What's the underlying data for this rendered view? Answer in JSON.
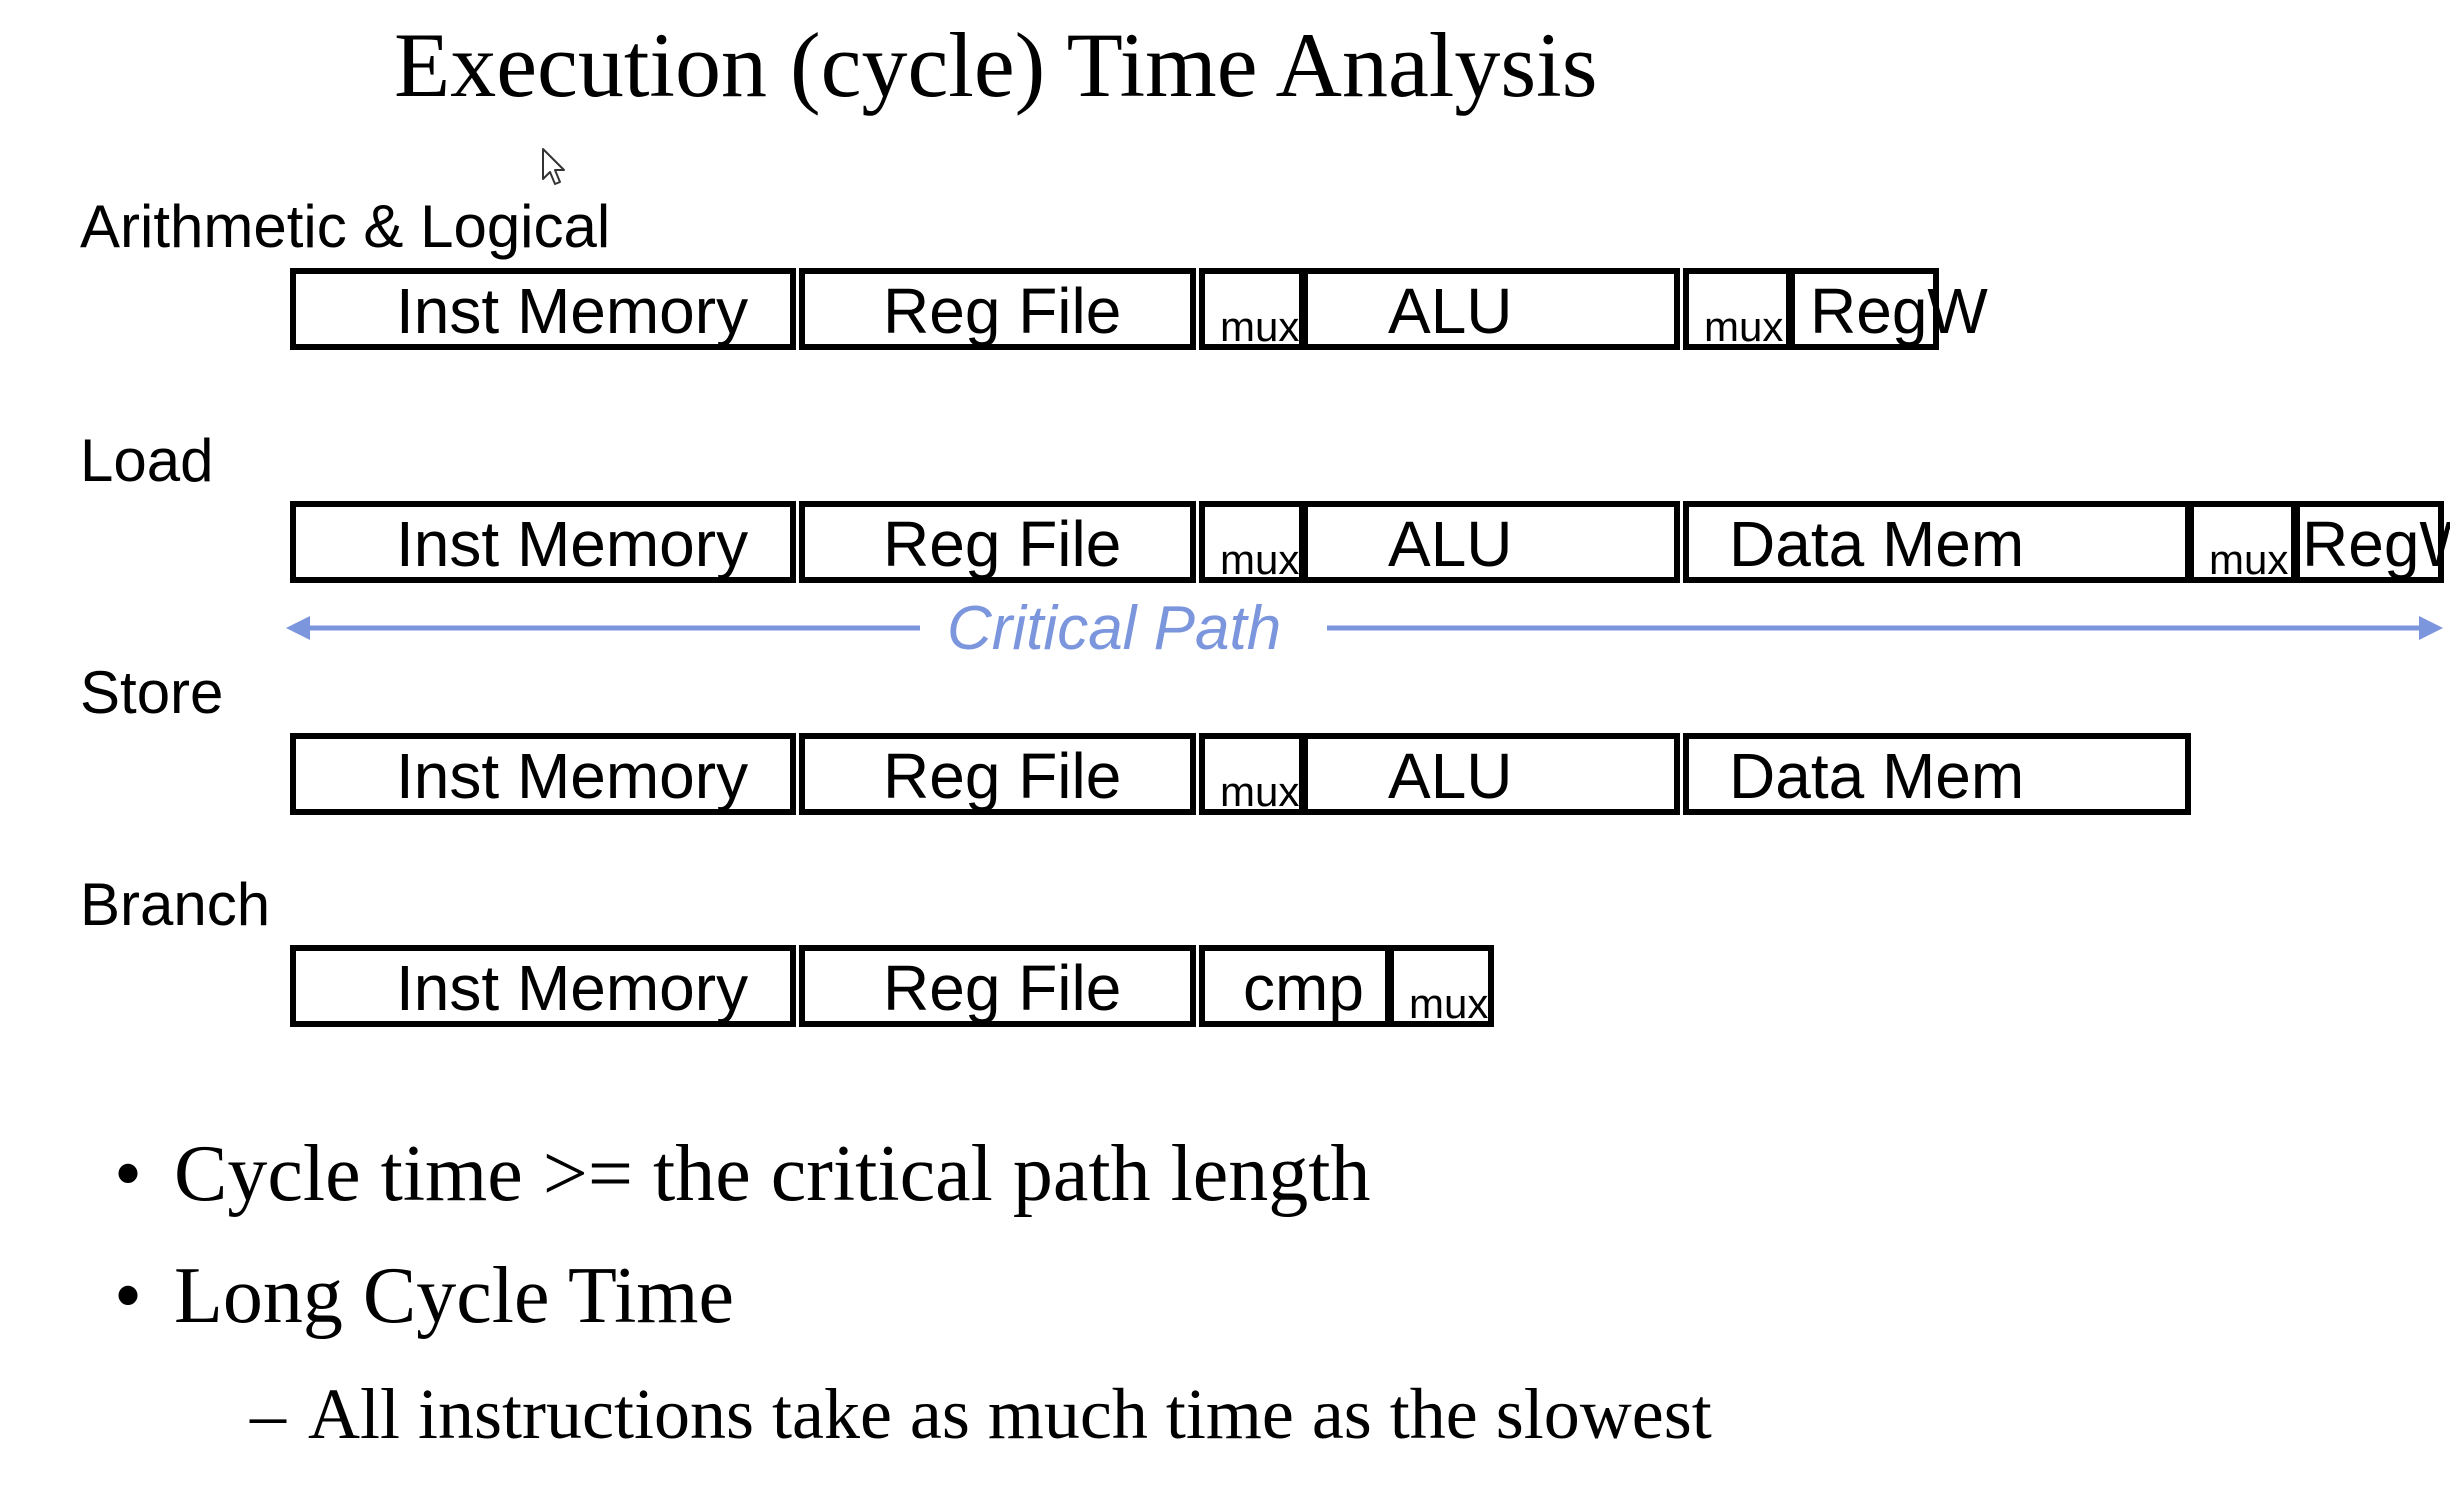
{
  "title": "Execution (cycle) Time Analysis",
  "rows": {
    "arith": {
      "label": "Arithmetic & Logical",
      "stages": [
        "Inst Memory",
        "Reg File",
        "mux",
        "ALU",
        "mux",
        "RegW"
      ]
    },
    "load": {
      "label": "Load",
      "stages": [
        "Inst Memory",
        "Reg File",
        "mux",
        "ALU",
        "Data Mem",
        "mux",
        "RegW"
      ]
    },
    "store": {
      "label": "Store",
      "stages": [
        "Inst Memory",
        "Reg File",
        "mux",
        "ALU",
        "Data Mem"
      ]
    },
    "branch": {
      "label": "Branch",
      "stages": [
        "Inst Memory",
        "Reg File",
        "cmp",
        "mux"
      ]
    }
  },
  "critical_path": {
    "label": "Critical Path",
    "color": "#7b96dd"
  },
  "bullets": [
    {
      "mark": "•",
      "text": "Cycle time >= the critical path length"
    },
    {
      "mark": "•",
      "text": "Long Cycle Time"
    },
    {
      "mark": "–",
      "text": "All instructions take as much time as the slowest"
    }
  ]
}
